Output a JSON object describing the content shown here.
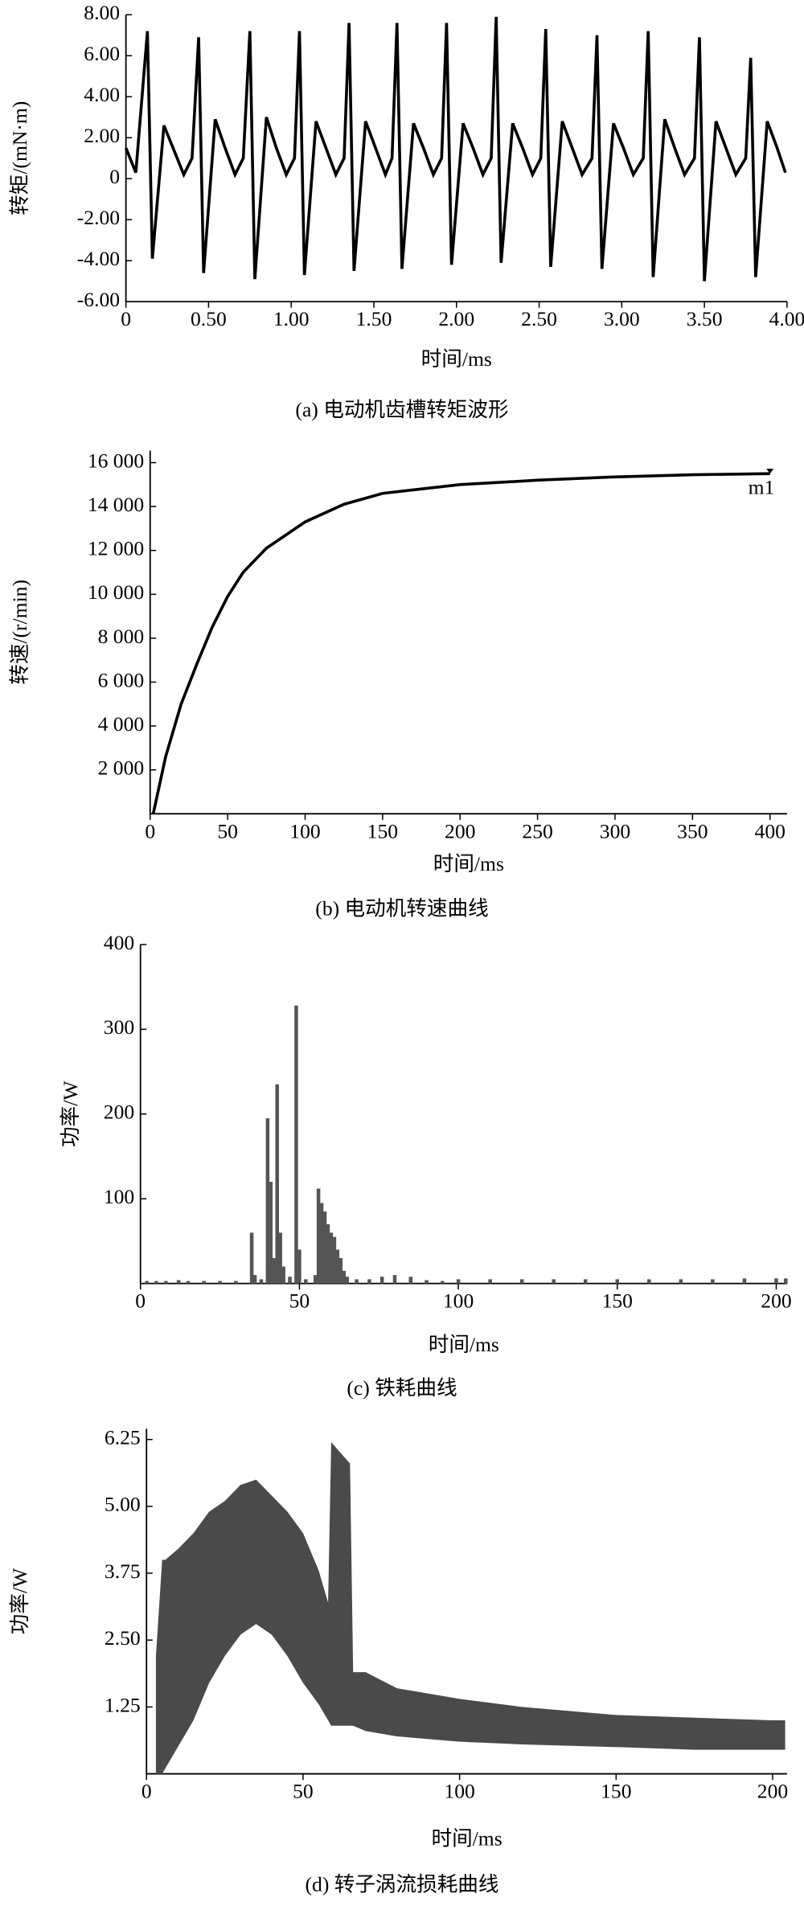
{
  "chart_data": [
    {
      "type": "line",
      "caption": "(a) 电动机齿槽转矩波形",
      "xlabel": "时间/ms",
      "ylabel": "转矩/(mN·m)",
      "color": "#000000",
      "xlim": [
        0,
        4
      ],
      "ylim": [
        -6,
        8
      ],
      "xticks": [
        0,
        {
          "value": 0.5,
          "label": "0.50"
        },
        {
          "value": 1,
          "label": "1.00"
        },
        {
          "value": 1.5,
          "label": "1.50"
        },
        {
          "value": 2,
          "label": "2.00"
        },
        {
          "value": 2.5,
          "label": "2.50"
        },
        {
          "value": 3,
          "label": "3.00"
        },
        {
          "value": 3.5,
          "label": "3.50"
        },
        {
          "value": 4,
          "label": "4.00"
        }
      ],
      "yticks": [
        {
          "value": -6,
          "label": "-6.00"
        },
        {
          "value": -4,
          "label": "-4.00"
        },
        {
          "value": -2,
          "label": "-2.00"
        },
        0,
        {
          "value": 2,
          "label": "2.00"
        },
        {
          "value": 4,
          "label": "4.00"
        },
        {
          "value": 6,
          "label": "6.00"
        },
        {
          "value": 8,
          "label": "8.00"
        }
      ],
      "x": [
        0,
        0.06,
        0.13,
        0.16,
        0.23,
        0.29,
        0.35,
        0.4,
        0.44,
        0.47,
        0.54,
        0.6,
        0.66,
        0.71,
        0.75,
        0.78,
        0.85,
        0.91,
        0.97,
        1.02,
        1.05,
        1.08,
        1.15,
        1.21,
        1.27,
        1.32,
        1.35,
        1.38,
        1.45,
        1.51,
        1.57,
        1.61,
        1.64,
        1.67,
        1.74,
        1.8,
        1.86,
        1.91,
        1.94,
        1.97,
        2.04,
        2.1,
        2.16,
        2.21,
        2.24,
        2.27,
        2.34,
        2.4,
        2.46,
        2.51,
        2.54,
        2.57,
        2.64,
        2.7,
        2.76,
        2.82,
        2.85,
        2.88,
        2.95,
        3.01,
        3.07,
        3.13,
        3.16,
        3.19,
        3.26,
        3.32,
        3.38,
        3.44,
        3.47,
        3.5,
        3.57,
        3.63,
        3.69,
        3.75,
        3.78,
        3.81,
        3.88,
        3.94,
        3.99
      ],
      "values": [
        1.5,
        0.3,
        7.2,
        -3.9,
        2.6,
        1.4,
        0.2,
        1.0,
        6.9,
        -4.6,
        2.9,
        1.5,
        0.2,
        1.0,
        7.2,
        -4.9,
        3.0,
        1.5,
        0.2,
        1.0,
        7.2,
        -4.7,
        2.8,
        1.5,
        0.2,
        1.0,
        7.6,
        -4.5,
        2.8,
        1.5,
        0.2,
        1.0,
        7.6,
        -4.4,
        2.7,
        1.5,
        0.2,
        1.0,
        7.6,
        -4.2,
        2.7,
        1.5,
        0.2,
        1.0,
        7.9,
        -4.1,
        2.7,
        1.5,
        0.2,
        1.0,
        7.3,
        -4.3,
        2.8,
        1.5,
        0.2,
        1.0,
        7.0,
        -4.4,
        2.7,
        1.5,
        0.2,
        1.0,
        7.2,
        -4.8,
        2.9,
        1.5,
        0.2,
        1.0,
        6.9,
        -5.0,
        2.8,
        1.5,
        0.2,
        1.0,
        5.9,
        -4.8,
        2.8,
        1.5,
        0.3
      ]
    },
    {
      "type": "line",
      "caption": "(b) 电动机转速曲线",
      "xlabel": "时间/ms",
      "ylabel": "转速/(r/min)",
      "color": "#000000",
      "xlim": [
        0,
        411
      ],
      "ylim": [
        0,
        16550
      ],
      "xticks": [
        0,
        50,
        100,
        150,
        200,
        250,
        300,
        350,
        400
      ],
      "yticks": [
        {
          "value": 2000,
          "label": "2 000"
        },
        {
          "value": 4000,
          "label": "4 000"
        },
        {
          "value": 6000,
          "label": "6 000"
        },
        {
          "value": 8000,
          "label": "8 000"
        },
        {
          "value": 10000,
          "label": "10 000"
        },
        {
          "value": 12000,
          "label": "12 000"
        },
        {
          "value": 14000,
          "label": "14 000"
        },
        {
          "value": 16000,
          "label": "16 000"
        }
      ],
      "x": [
        2,
        10,
        20,
        30,
        40,
        50,
        60,
        75,
        100,
        125,
        150,
        200,
        250,
        300,
        350,
        400
      ],
      "values": [
        0,
        2600,
        5000,
        6800,
        8500,
        9900,
        11000,
        12100,
        13300,
        14100,
        14600,
        15000,
        15200,
        15350,
        15450,
        15500
      ],
      "marker": {
        "x": 400,
        "y": 15500,
        "label": "m1"
      }
    },
    {
      "type": "bar",
      "caption": "(c) 铁耗曲线",
      "xlabel": "时间/ms",
      "ylabel": "功率/W",
      "color": "#555555",
      "xlim": [
        0,
        203.4
      ],
      "ylim": [
        0,
        400
      ],
      "xticks": [
        0,
        50,
        100,
        150,
        200
      ],
      "yticks": [
        100,
        200,
        300,
        400
      ],
      "x": [
        2,
        5,
        8,
        12,
        15,
        20,
        25,
        30,
        35,
        36,
        38,
        40,
        41,
        42,
        43,
        44,
        45,
        47,
        49,
        50,
        52,
        55,
        56,
        57,
        58,
        59,
        60,
        61,
        62,
        63,
        64,
        65,
        68,
        72,
        76,
        80,
        85,
        90,
        95,
        100,
        110,
        120,
        130,
        140,
        150,
        160,
        170,
        180,
        190,
        200,
        203
      ],
      "values": [
        3,
        3,
        3,
        4,
        3,
        3,
        3,
        3,
        60,
        10,
        5,
        195,
        120,
        30,
        235,
        60,
        20,
        8,
        328,
        40,
        5,
        10,
        112,
        95,
        85,
        70,
        60,
        55,
        40,
        30,
        15,
        8,
        5,
        5,
        8,
        10,
        8,
        4,
        3,
        5,
        5,
        5,
        5,
        5,
        5,
        5,
        5,
        5,
        6,
        6,
        6
      ]
    },
    {
      "type": "area",
      "caption": "(d) 转子涡流损耗曲线",
      "xlabel": "时间/ms",
      "ylabel": "功率/W",
      "color": "#4a4a4a",
      "xlim": [
        0,
        204.6
      ],
      "ylim": [
        0,
        6.45
      ],
      "xticks": [
        0,
        50,
        100,
        150,
        200
      ],
      "yticks": [
        1.25,
        {
          "value": 2.5,
          "label": "2.50"
        },
        3.75,
        {
          "value": 5,
          "label": "5.00"
        },
        6.25
      ],
      "x": [
        3,
        5,
        6,
        10,
        15,
        20,
        25,
        30,
        35,
        40,
        45,
        50,
        55,
        58,
        59,
        62,
        65,
        66,
        70,
        80,
        100,
        120,
        150,
        175,
        200,
        204
      ],
      "values": [
        2.2,
        4.0,
        4.0,
        4.2,
        4.5,
        4.9,
        5.1,
        5.4,
        5.5,
        5.2,
        4.9,
        4.5,
        3.8,
        3.2,
        6.2,
        6.0,
        5.8,
        1.9,
        1.9,
        1.6,
        1.4,
        1.25,
        1.1,
        1.05,
        1.0,
        1.0
      ],
      "low_values": [
        0,
        0,
        0.1,
        0.5,
        1.0,
        1.7,
        2.2,
        2.6,
        2.8,
        2.6,
        2.2,
        1.7,
        1.3,
        1.0,
        0.9,
        0.9,
        0.9,
        0.9,
        0.8,
        0.7,
        0.6,
        0.55,
        0.5,
        0.45,
        0.45,
        0.45
      ]
    }
  ]
}
